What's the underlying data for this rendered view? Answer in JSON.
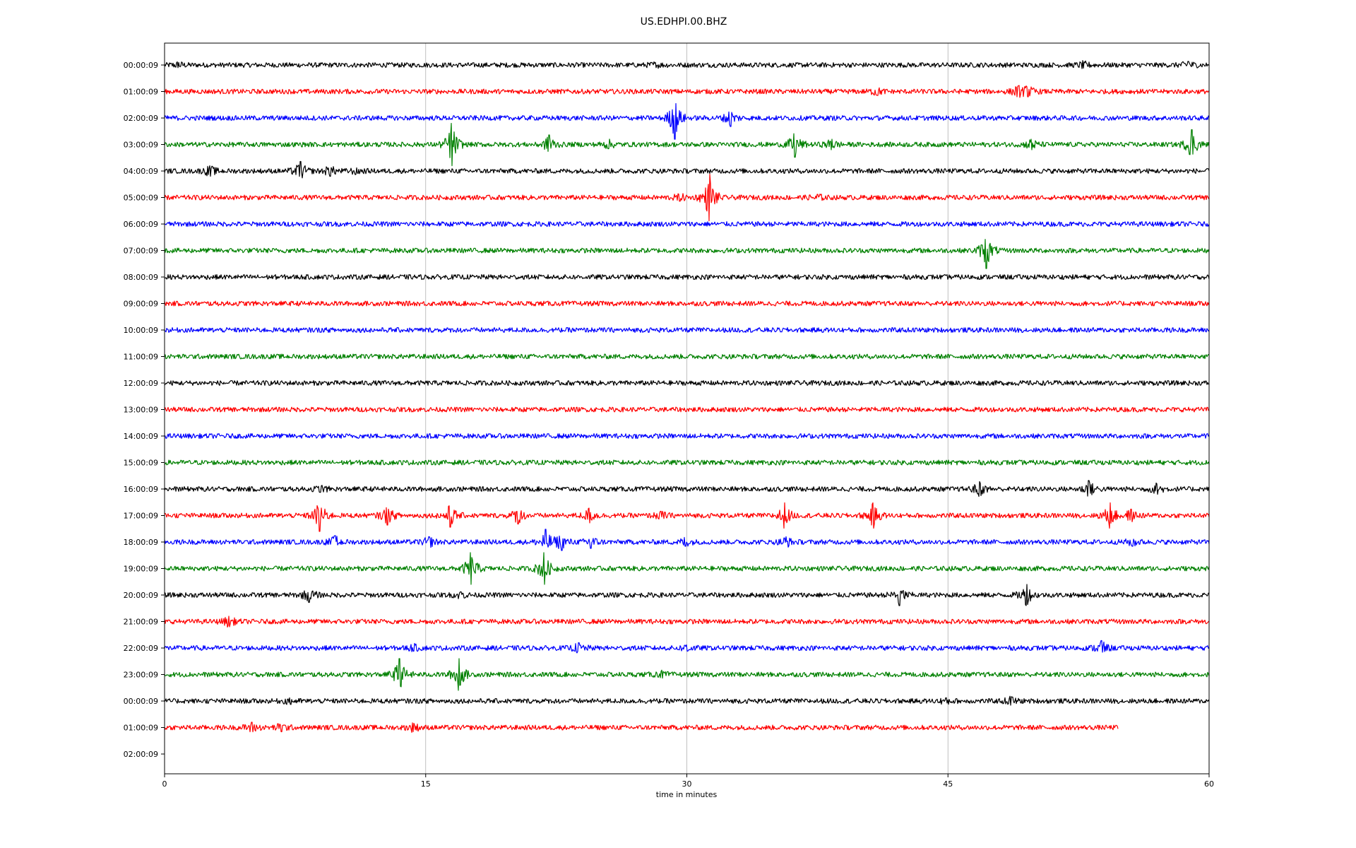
{
  "chart_data": {
    "type": "line",
    "title": "US.EDHPI.00.BHZ",
    "xlabel": "time in minutes",
    "ylabel": "",
    "xlim": [
      0,
      60
    ],
    "x_ticks": [
      "0",
      "15",
      "30",
      "45",
      "60"
    ],
    "x_tick_values": [
      0,
      15,
      30,
      45,
      60
    ],
    "grid": "vertical",
    "row_labels": [
      "00:00:09",
      "01:00:09",
      "02:00:09",
      "03:00:09",
      "04:00:09",
      "05:00:09",
      "06:00:09",
      "07:00:09",
      "08:00:09",
      "09:00:09",
      "10:00:09",
      "11:00:09",
      "12:00:09",
      "13:00:09",
      "14:00:09",
      "15:00:09",
      "16:00:09",
      "17:00:09",
      "18:00:09",
      "19:00:09",
      "20:00:09",
      "21:00:09",
      "22:00:09",
      "23:00:09",
      "00:00:09",
      "01:00:09",
      "02:00:09"
    ],
    "color_cycle": [
      "#000000",
      "#ff0000",
      "#0000ff",
      "#008000"
    ],
    "rows": [
      {
        "label": "00:00:09",
        "end_minute": 60,
        "events": [
          [
            0.8,
            0.25
          ],
          [
            28.2,
            0.25
          ],
          [
            52.8,
            0.3
          ],
          [
            58.8,
            0.35
          ]
        ]
      },
      {
        "label": "01:00:09",
        "end_minute": 60,
        "events": [
          [
            40.9,
            0.35
          ],
          [
            49.0,
            0.5
          ],
          [
            49.6,
            0.5
          ]
        ]
      },
      {
        "label": "02:00:09",
        "end_minute": 60,
        "events": [
          [
            29.3,
            2.0
          ],
          [
            32.5,
            0.8
          ]
        ]
      },
      {
        "label": "03:00:09",
        "end_minute": 60,
        "events": [
          [
            16.5,
            2.0
          ],
          [
            22.1,
            0.9
          ],
          [
            25.5,
            0.4
          ],
          [
            36.2,
            1.2
          ],
          [
            38.3,
            0.5
          ],
          [
            49.8,
            0.5
          ],
          [
            59.0,
            1.4
          ]
        ]
      },
      {
        "label": "04:00:09",
        "end_minute": 60,
        "events": [
          [
            2.6,
            0.5
          ],
          [
            7.8,
            0.9
          ],
          [
            9.5,
            0.5
          ],
          [
            11.0,
            0.3
          ]
        ]
      },
      {
        "label": "05:00:09",
        "end_minute": 60,
        "events": [
          [
            29.6,
            0.35
          ],
          [
            31.3,
            2.2
          ],
          [
            37.5,
            0.3
          ]
        ]
      },
      {
        "label": "06:00:09",
        "end_minute": 60,
        "events": []
      },
      {
        "label": "07:00:09",
        "end_minute": 60,
        "events": [
          [
            47.2,
            1.7
          ]
        ]
      },
      {
        "label": "08:00:09",
        "end_minute": 60,
        "events": []
      },
      {
        "label": "09:00:09",
        "end_minute": 60,
        "events": []
      },
      {
        "label": "10:00:09",
        "end_minute": 60,
        "events": []
      },
      {
        "label": "11:00:09",
        "end_minute": 60,
        "events": []
      },
      {
        "label": "12:00:09",
        "end_minute": 60,
        "events": []
      },
      {
        "label": "13:00:09",
        "end_minute": 60,
        "events": []
      },
      {
        "label": "14:00:09",
        "end_minute": 60,
        "events": []
      },
      {
        "label": "15:00:09",
        "end_minute": 60,
        "events": []
      },
      {
        "label": "16:00:09",
        "end_minute": 60,
        "events": [
          [
            9.0,
            0.3
          ],
          [
            46.8,
            0.7
          ],
          [
            53.1,
            0.8
          ],
          [
            57.0,
            0.5
          ]
        ]
      },
      {
        "label": "17:00:09",
        "end_minute": 60,
        "events": [
          [
            8.9,
            1.5
          ],
          [
            12.8,
            0.9
          ],
          [
            16.4,
            1.1
          ],
          [
            20.3,
            0.8
          ],
          [
            24.4,
            0.7
          ],
          [
            28.5,
            0.4
          ],
          [
            35.6,
            1.2
          ],
          [
            40.7,
            1.2
          ],
          [
            54.3,
            1.2
          ],
          [
            55.5,
            0.6
          ]
        ]
      },
      {
        "label": "18:00:09",
        "end_minute": 60,
        "events": [
          [
            9.8,
            0.6
          ],
          [
            15.2,
            0.5
          ],
          [
            21.9,
            1.2
          ],
          [
            22.8,
            0.8
          ],
          [
            24.5,
            0.6
          ],
          [
            29.9,
            0.4
          ],
          [
            35.7,
            0.5
          ],
          [
            55.6,
            0.4
          ]
        ]
      },
      {
        "label": "19:00:09",
        "end_minute": 60,
        "events": [
          [
            17.6,
            1.5
          ],
          [
            21.8,
            1.5
          ]
        ]
      },
      {
        "label": "20:00:09",
        "end_minute": 60,
        "events": [
          [
            8.3,
            0.7
          ],
          [
            17.0,
            0.3
          ],
          [
            42.2,
            1.0
          ],
          [
            49.5,
            1.0
          ]
        ]
      },
      {
        "label": "21:00:09",
        "end_minute": 60,
        "events": [
          [
            3.7,
            0.5
          ]
        ]
      },
      {
        "label": "22:00:09",
        "end_minute": 60,
        "events": [
          [
            14.3,
            0.3
          ],
          [
            23.8,
            0.5
          ],
          [
            30.0,
            0.3
          ],
          [
            53.8,
            0.7
          ]
        ]
      },
      {
        "label": "23:00:09",
        "end_minute": 60,
        "events": [
          [
            13.5,
            1.5
          ],
          [
            16.9,
            1.5
          ],
          [
            28.5,
            0.3
          ]
        ]
      },
      {
        "label": "00:00:09",
        "end_minute": 60,
        "events": [
          [
            7.2,
            0.3
          ],
          [
            44.9,
            0.3
          ],
          [
            48.6,
            0.4
          ]
        ]
      },
      {
        "label": "01:00:09",
        "end_minute": 54.8,
        "events": [
          [
            5.0,
            0.5
          ],
          [
            6.7,
            0.4
          ],
          [
            14.3,
            0.4
          ]
        ]
      },
      {
        "label": "02:00:09",
        "end_minute": 0,
        "events": []
      }
    ]
  }
}
